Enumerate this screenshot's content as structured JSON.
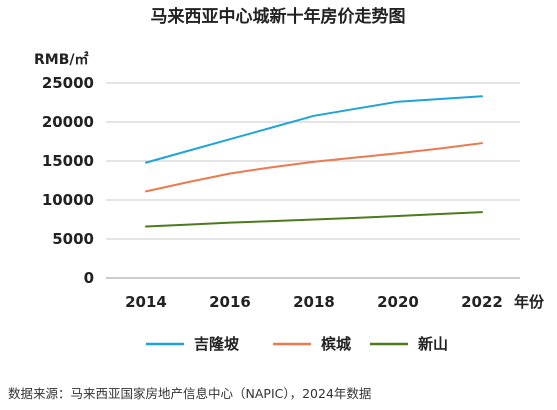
{
  "chart_data": {
    "type": "line",
    "title": "马来西亚中心城新十年房价走势图",
    "ylabel": "RMB/㎡",
    "xlabel": "年份",
    "x": [
      2014,
      2015,
      2016,
      2017,
      2018,
      2019,
      2020,
      2021,
      2022
    ],
    "x_tick_labels": [
      "2014",
      "2016",
      "2018",
      "2020",
      "2022"
    ],
    "y_tick_labels": [
      "25000",
      "20000",
      "15000",
      "10000",
      "5000",
      "0"
    ],
    "ylim": [
      0,
      25000
    ],
    "grid": true,
    "legend_position": "bottom",
    "series": [
      {
        "name": "吉隆坡",
        "color": "#1fa4d9",
        "values": [
          14800,
          16300,
          17800,
          19300,
          20800,
          21700,
          22600,
          22950,
          23300
        ]
      },
      {
        "name": "槟城",
        "color": "#ec7a4e",
        "values": [
          11100,
          12300,
          13400,
          14200,
          14900,
          15450,
          16000,
          16600,
          17300
        ]
      },
      {
        "name": "新山",
        "color": "#4d7a1a",
        "values": [
          6600,
          6850,
          7100,
          7300,
          7500,
          7700,
          7950,
          8200,
          8450
        ]
      }
    ]
  },
  "source_text": "数据来源：马来西亚国家房地产信息中心（NAPIC），2024年数据"
}
